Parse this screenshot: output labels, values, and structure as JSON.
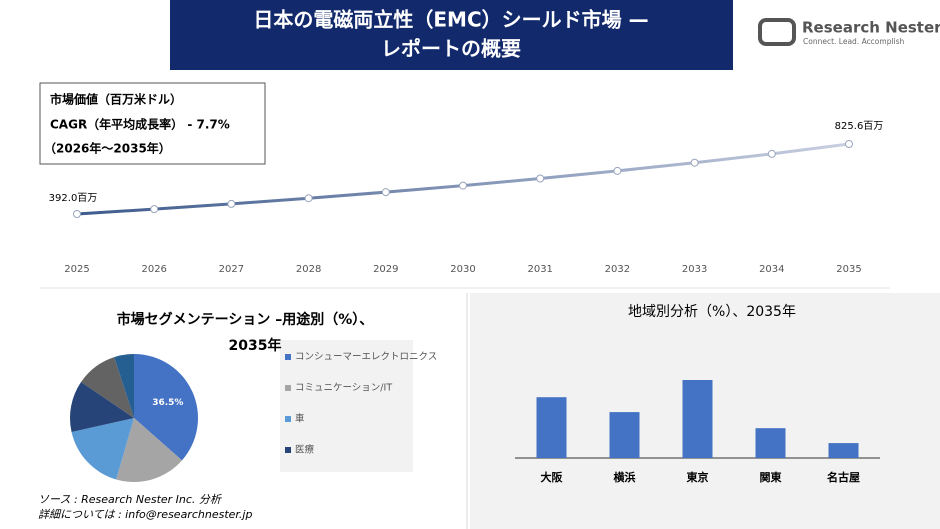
{
  "header": {
    "title_lines": [
      "日本の電磁両立性（EMC）シールド市場 —",
      "レポートの概要"
    ]
  },
  "logo": {
    "name": "Research Nester",
    "tagline": "Connect. Lead. Accomplish"
  },
  "info_box": {
    "lines": [
      "市場価値（百万米ドル）",
      "CAGR（年平均成長率） - 7.7%",
      "（2026年～2035年）"
    ]
  },
  "chart_data": [
    {
      "type": "line",
      "x": [
        2025,
        2026,
        2027,
        2028,
        2029,
        2030,
        2031,
        2032,
        2033,
        2034,
        2035
      ],
      "series": [
        {
          "color": "#3d5a8c",
          "values": [
            392.0,
            422.2,
            454.7,
            489.7,
            527.4,
            568.0,
            611.8,
            658.9,
            709.6,
            764.3,
            825.6
          ],
          "value_labels": [
            "392.0百万",
            null,
            null,
            null,
            null,
            null,
            null,
            null,
            null,
            null,
            "825.6百万"
          ]
        }
      ]
    },
    {
      "type": "pie",
      "title_lines": [
        "市場セグメンテーション –用途別（%）、",
        "2035年"
      ],
      "categories": [
        "コンシューマーエレクトロニクス",
        "コミュニケーション/IT",
        "車",
        "医療",
        null,
        null
      ],
      "values": [
        36.5,
        18,
        17,
        13,
        10.5,
        5
      ],
      "value_labels": [
        "36.5%",
        null,
        null,
        null,
        null,
        null
      ],
      "colors": [
        "#4472c4",
        "#a5a5a5",
        "#5b9bd5",
        "#264478",
        "#636363",
        "#255e91"
      ]
    },
    {
      "type": "bar",
      "title": "地域別分析（%）、2035年",
      "categories": [
        "大阪",
        "横浜",
        "東京",
        "関東",
        "名古屋"
      ],
      "values": [
        26.5,
        20,
        34,
        13,
        6.5
      ],
      "color": "#4472c4"
    }
  ],
  "footer": {
    "source": "ソース : Research Nester Inc. 分析",
    "contact": "詳細については : info@researchnester.jp"
  }
}
